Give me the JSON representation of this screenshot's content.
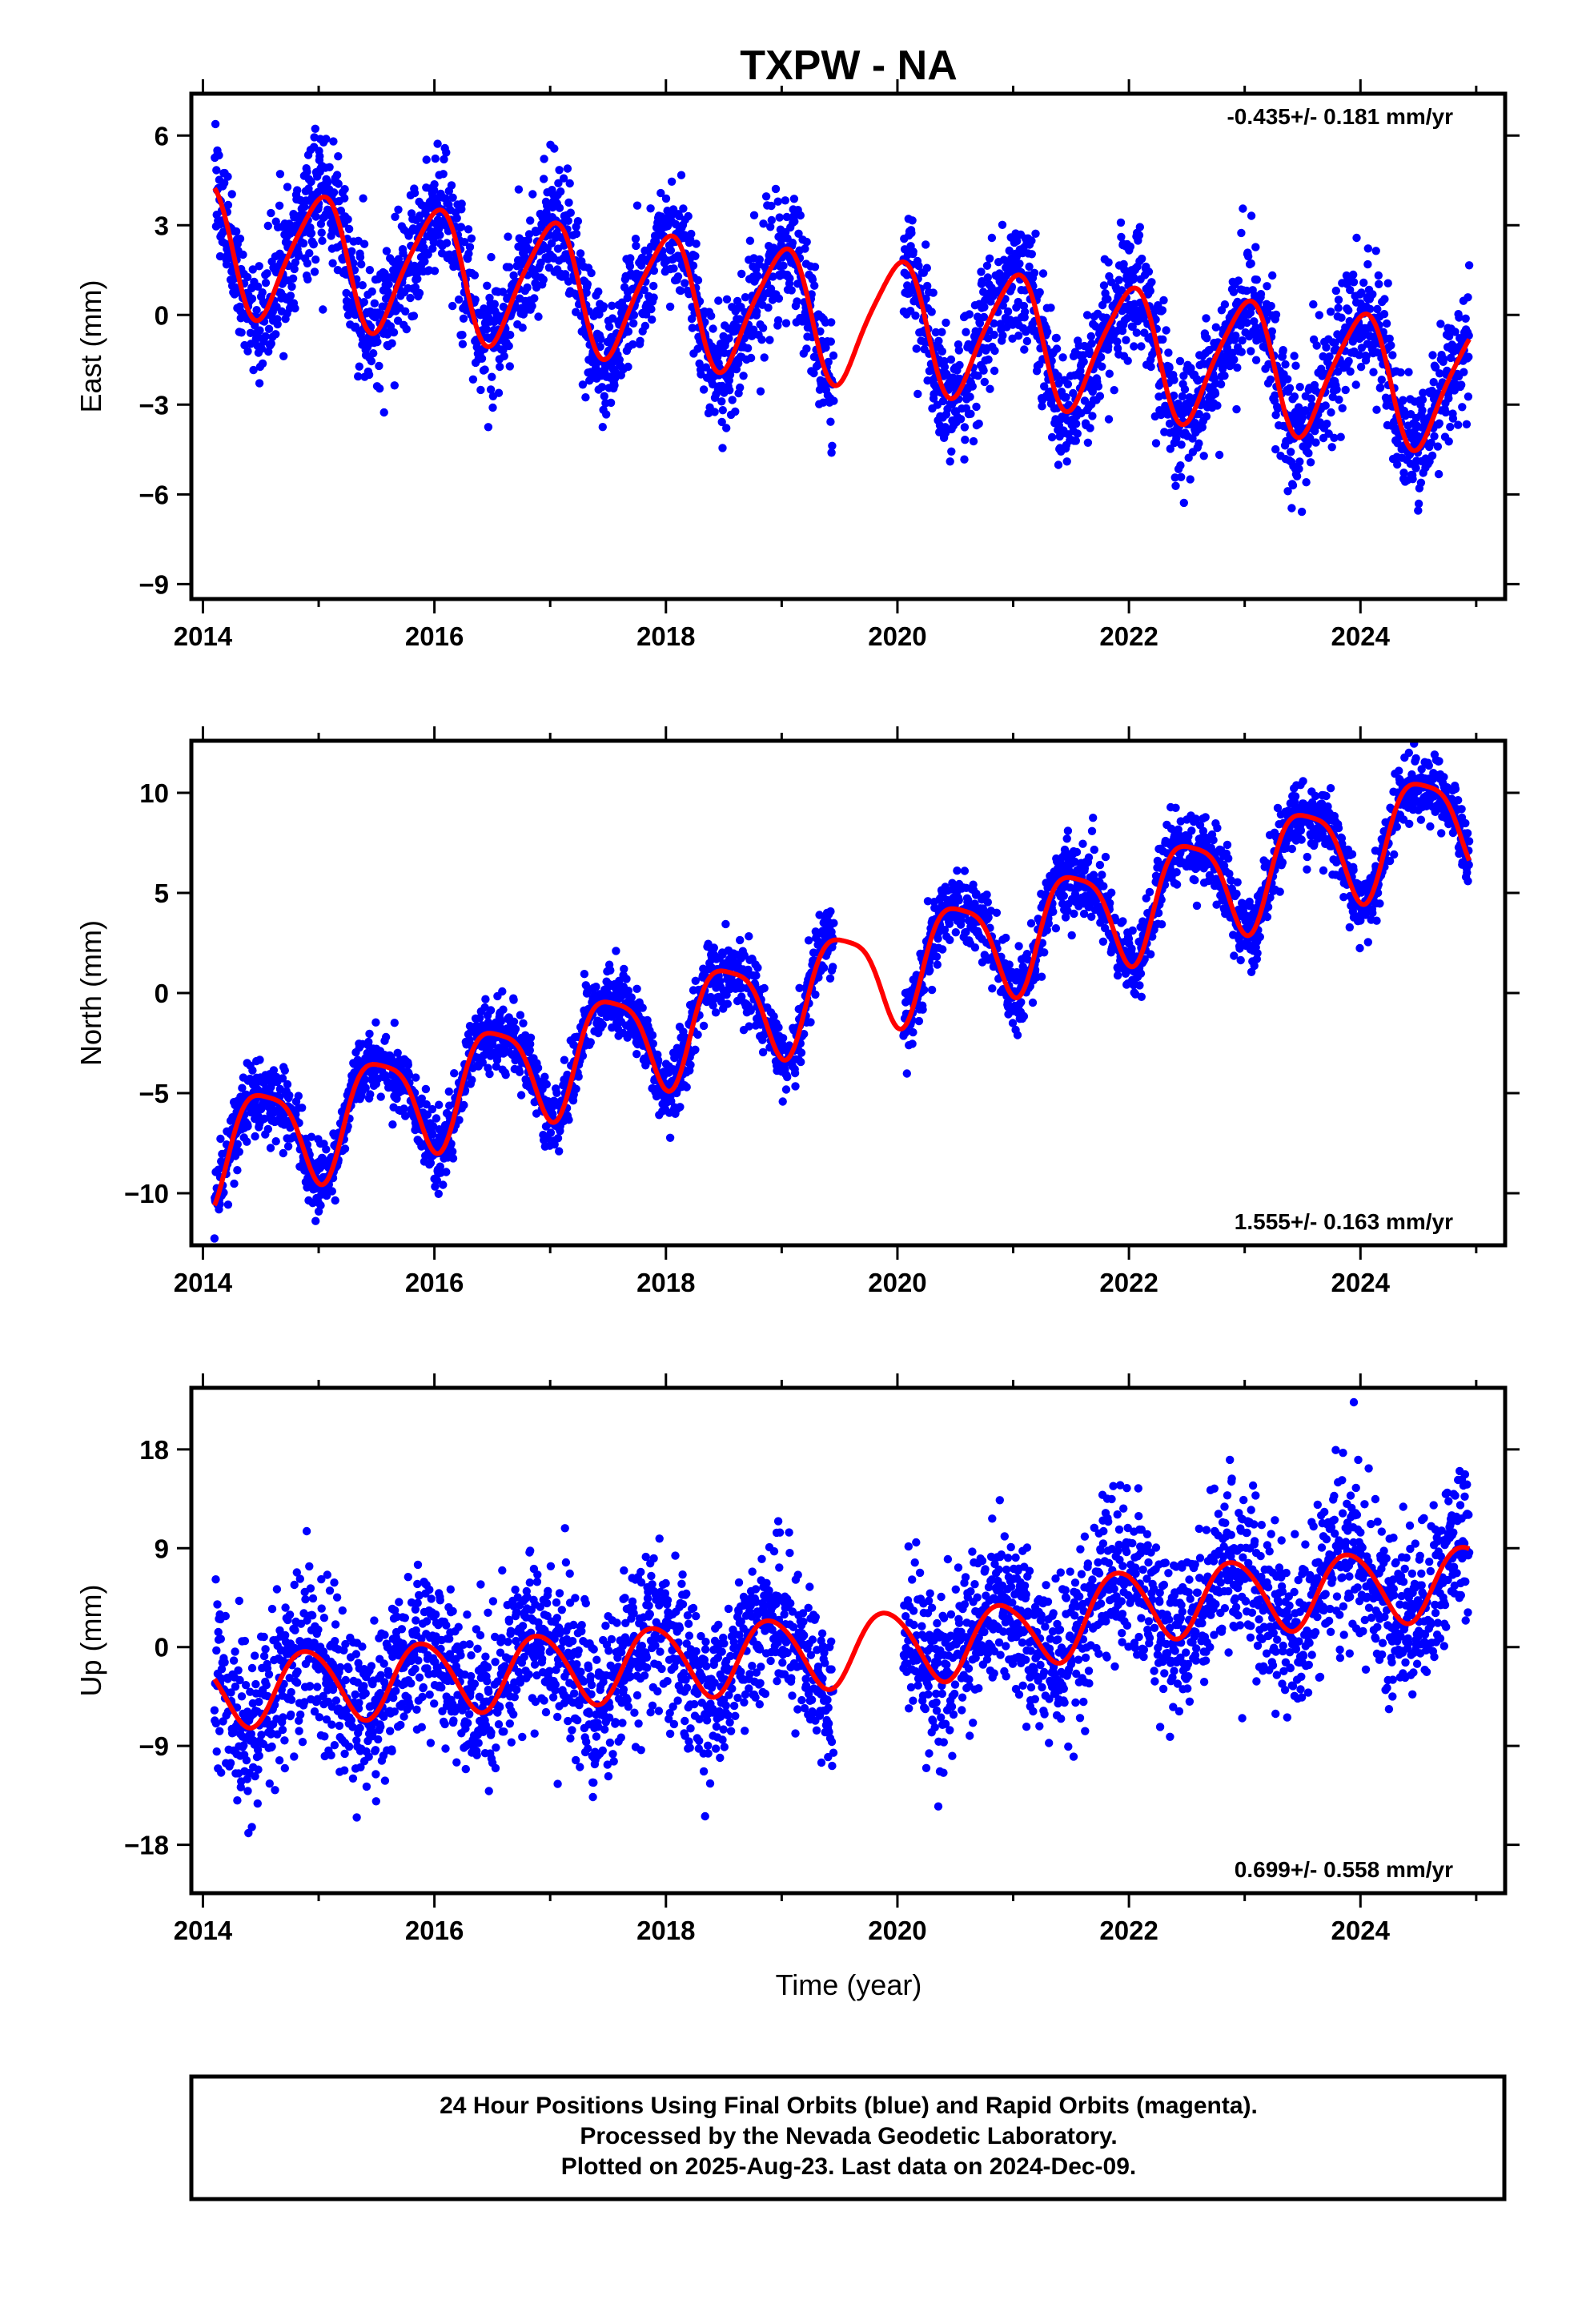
{
  "figure": {
    "title": "TXPW - NA",
    "xlabel": "Time (year)",
    "footer": [
      "24 Hour Positions Using Final Orbits (blue) and Rapid Orbits (magenta).",
      "Processed by the Nevada Geodetic Laboratory.",
      "Plotted on 2025-Aug-23. Last data on 2024-Dec-09."
    ],
    "colors": {
      "points": "#0000ff",
      "model": "#ff0000",
      "axes": "#000000"
    }
  },
  "chart_data": [
    {
      "type": "scatter",
      "component": "East",
      "ylabel": "East (mm)",
      "rate_text": "-0.435+/- 0.181 mm/yr",
      "rate_position": "top-right",
      "xlim": [
        2013.9,
        2025.25
      ],
      "ylim": [
        -9.5,
        7.4
      ],
      "xticks": [
        2014,
        2016,
        2018,
        2020,
        2022,
        2024
      ],
      "xtick_labels": [
        "2014",
        "2016",
        "2018",
        "2020",
        "2022",
        "2024"
      ],
      "yticks": [
        6,
        3,
        0,
        -3,
        -6,
        -9
      ],
      "ytick_labels": [
        "6",
        "3",
        "0",
        "−3",
        "−6",
        "−9"
      ],
      "data_start": 2014.1,
      "data_end": 2024.94,
      "data_gap": [
        2019.45,
        2020.05
      ],
      "trend": {
        "intercept_2014": 2.3,
        "rate": -0.435
      },
      "annual": {
        "amplitude": 2.1,
        "peak_year_fraction": 0.0
      },
      "semiannual": {
        "amplitude": 0.35,
        "phase": 0.15
      },
      "noise_sd": 1.05,
      "model_series": [
        {
          "x": 2014.1,
          "y": 3.7
        },
        {
          "x": 2014.5,
          "y": 0.0
        },
        {
          "x": 2015.0,
          "y": 3.6
        },
        {
          "x": 2015.5,
          "y": -0.4
        },
        {
          "x": 2016.0,
          "y": 3.1
        },
        {
          "x": 2016.5,
          "y": -0.8
        },
        {
          "x": 2017.0,
          "y": 2.8
        },
        {
          "x": 2017.5,
          "y": -1.2
        },
        {
          "x": 2018.0,
          "y": 2.3
        },
        {
          "x": 2018.5,
          "y": -1.6
        },
        {
          "x": 2019.0,
          "y": 1.8
        },
        {
          "x": 2019.5,
          "y": -2.1
        },
        {
          "x": 2020.0,
          "y": 1.4
        },
        {
          "x": 2020.5,
          "y": -2.5
        },
        {
          "x": 2021.0,
          "y": 1.0
        },
        {
          "x": 2021.5,
          "y": -3.0
        },
        {
          "x": 2022.0,
          "y": 0.6
        },
        {
          "x": 2022.5,
          "y": -3.4
        },
        {
          "x": 2023.0,
          "y": 0.1
        },
        {
          "x": 2023.5,
          "y": -3.8
        },
        {
          "x": 2024.0,
          "y": -0.3
        },
        {
          "x": 2024.5,
          "y": -4.3
        },
        {
          "x": 2024.94,
          "y": -0.9
        }
      ]
    },
    {
      "type": "scatter",
      "component": "North",
      "ylabel": "North (mm)",
      "rate_text": "1.555+/- 0.163 mm/yr",
      "rate_position": "bottom-right",
      "xlim": [
        2013.9,
        2025.25
      ],
      "ylim": [
        -12.6,
        12.6
      ],
      "xticks": [
        2014,
        2016,
        2018,
        2020,
        2022,
        2024
      ],
      "xtick_labels": [
        "2014",
        "2016",
        "2018",
        "2020",
        "2022",
        "2024"
      ],
      "yticks": [
        10,
        5,
        0,
        -5,
        -10
      ],
      "ytick_labels": [
        "10",
        "5",
        "0",
        "−5",
        "−10"
      ],
      "data_start": 2014.1,
      "data_end": 2024.94,
      "data_gap": [
        2019.45,
        2020.05
      ],
      "trend": {
        "intercept_2014": -8.0,
        "rate": 1.555
      },
      "annual": {
        "amplitude": 2.6,
        "peak_year_fraction": 0.52
      },
      "semiannual": {
        "amplitude": 0.6,
        "phase": 0.3
      },
      "noise_sd": 0.85,
      "model_series": [
        {
          "x": 2014.1,
          "y": -9.8
        },
        {
          "x": 2014.5,
          "y": -4.6
        },
        {
          "x": 2014.9,
          "y": -9.7
        },
        {
          "x": 2015.5,
          "y": -3.0
        },
        {
          "x": 2015.9,
          "y": -8.2
        },
        {
          "x": 2016.5,
          "y": -1.4
        },
        {
          "x": 2016.9,
          "y": -6.6
        },
        {
          "x": 2017.5,
          "y": 0.1
        },
        {
          "x": 2017.9,
          "y": -5.0
        },
        {
          "x": 2018.5,
          "y": 1.7
        },
        {
          "x": 2018.9,
          "y": -3.4
        },
        {
          "x": 2019.5,
          "y": 3.2
        },
        {
          "x": 2019.9,
          "y": -1.9
        },
        {
          "x": 2020.5,
          "y": 4.8
        },
        {
          "x": 2020.9,
          "y": -0.3
        },
        {
          "x": 2021.5,
          "y": 6.3
        },
        {
          "x": 2021.9,
          "y": 1.2
        },
        {
          "x": 2022.5,
          "y": 7.9
        },
        {
          "x": 2022.9,
          "y": 2.8
        },
        {
          "x": 2023.5,
          "y": 9.5
        },
        {
          "x": 2023.9,
          "y": 4.3
        },
        {
          "x": 2024.5,
          "y": 11.0
        },
        {
          "x": 2024.94,
          "y": 6.1
        }
      ]
    },
    {
      "type": "scatter",
      "component": "Up",
      "ylabel": "Up (mm)",
      "rate_text": "0.699+/- 0.558 mm/yr",
      "rate_position": "bottom-right",
      "xlim": [
        2013.9,
        2025.25
      ],
      "ylim": [
        -22.4,
        23.6
      ],
      "xticks": [
        2014,
        2016,
        2018,
        2020,
        2022,
        2024
      ],
      "xtick_labels": [
        "2014",
        "2016",
        "2018",
        "2020",
        "2022",
        "2024"
      ],
      "yticks": [
        18,
        9,
        0,
        -9,
        -18
      ],
      "ytick_labels": [
        "18",
        "9",
        "0",
        "−9",
        "−18"
      ],
      "data_start": 2014.1,
      "data_end": 2024.94,
      "data_gap": [
        2019.45,
        2020.05
      ],
      "trend": {
        "intercept_2014": -4.1,
        "rate": 0.699
      },
      "annual": {
        "amplitude": 3.3,
        "peak_year_fraction": 0.9
      },
      "semiannual": {
        "amplitude": 0.3,
        "phase": 0.2
      },
      "extra_offset": {
        "start": 2021.0,
        "value": 2.5
      },
      "noise_sd": 3.6,
      "model_series": [
        {
          "x": 2014.1,
          "y": -3.0
        },
        {
          "x": 2014.4,
          "y": -6.7
        },
        {
          "x": 2014.9,
          "y": 0.1
        },
        {
          "x": 2015.4,
          "y": -6.0
        },
        {
          "x": 2015.9,
          "y": 0.8
        },
        {
          "x": 2016.4,
          "y": -5.4
        },
        {
          "x": 2016.9,
          "y": 1.5
        },
        {
          "x": 2017.4,
          "y": -4.7
        },
        {
          "x": 2017.9,
          "y": 2.2
        },
        {
          "x": 2018.4,
          "y": -4.0
        },
        {
          "x": 2018.9,
          "y": 2.9
        },
        {
          "x": 2019.4,
          "y": -3.3
        },
        {
          "x": 2019.9,
          "y": 3.6
        },
        {
          "x": 2020.4,
          "y": -2.6
        },
        {
          "x": 2020.9,
          "y": 4.3
        },
        {
          "x": 2021.4,
          "y": -1.6
        },
        {
          "x": 2021.9,
          "y": 4.9
        },
        {
          "x": 2022.4,
          "y": -0.9
        },
        {
          "x": 2022.9,
          "y": 5.6
        },
        {
          "x": 2023.4,
          "y": -0.3
        },
        {
          "x": 2023.9,
          "y": 6.3
        },
        {
          "x": 2024.4,
          "y": 0.4
        },
        {
          "x": 2024.94,
          "y": 7.0
        }
      ]
    }
  ]
}
